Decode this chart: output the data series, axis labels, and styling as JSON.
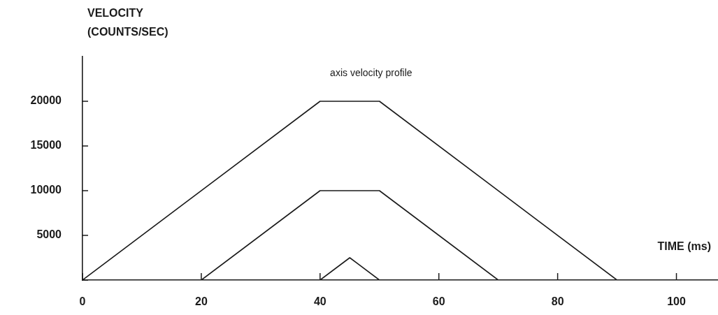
{
  "chart_data": {
    "type": "line",
    "title": "axis velocity profile",
    "xlabel": "TIME (ms)",
    "ylabel": "VELOCITY\n(COUNTS/SEC)",
    "series": [
      {
        "color": "#1a1a1a",
        "x": [
          0,
          40,
          50,
          90
        ],
        "values": [
          0,
          20000,
          20000,
          0
        ]
      },
      {
        "color": "#1a1a1a",
        "x": [
          20,
          40,
          50,
          70
        ],
        "values": [
          0,
          10000,
          10000,
          0
        ]
      },
      {
        "color": "#1a1a1a",
        "x": [
          40,
          45,
          50
        ],
        "values": [
          0,
          2500,
          0
        ]
      }
    ],
    "xlim": [
      0,
      107
    ],
    "xticks": [
      0,
      20,
      40,
      60,
      80,
      100
    ],
    "ylim": [
      0,
      25000
    ],
    "yticks": [
      {
        "value": 0,
        "label": null
      },
      5000,
      10000,
      15000,
      20000
    ],
    "grid": false,
    "legend": false,
    "marker": "none",
    "line_style": "solid"
  }
}
